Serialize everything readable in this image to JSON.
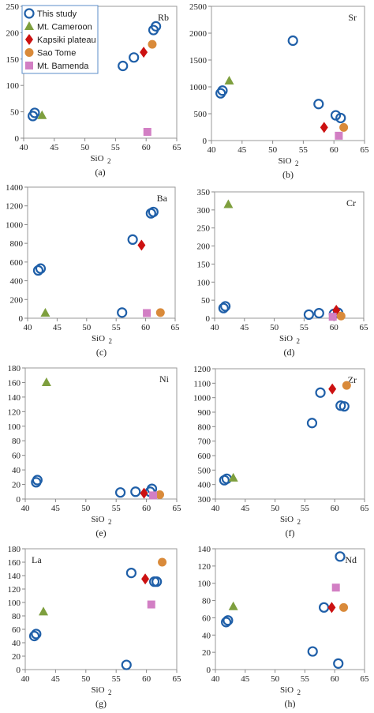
{
  "figure": {
    "x_axis_label": "SiO",
    "x_axis_subscript": "2"
  },
  "legend": {
    "items": [
      {
        "label": "This study",
        "marker": "open-circle",
        "color": "#1f5fa8"
      },
      {
        "label": "Mt. Cameroon",
        "marker": "triangle",
        "color": "#7e9f3e"
      },
      {
        "label": "Kapsiki plateau",
        "marker": "diamond",
        "color": "#cc1111"
      },
      {
        "label": "Sao Tome",
        "marker": "filled-circle",
        "color": "#d98a3a"
      },
      {
        "label": "Mt. Bamenda",
        "marker": "square",
        "color": "#d27fc4"
      }
    ]
  },
  "chart_data": [
    {
      "type": "scatter",
      "panel_label": "(a)",
      "element_label": "Rb",
      "xlim": [
        40,
        65
      ],
      "ylim": [
        0,
        250
      ],
      "xticks": [
        40,
        45,
        50,
        55,
        60,
        65
      ],
      "yticks": [
        0,
        50,
        100,
        150,
        200,
        250
      ],
      "series": [
        {
          "name": "This study",
          "points": [
            [
              41.5,
              42
            ],
            [
              41.8,
              48
            ],
            [
              56.2,
              137
            ],
            [
              58,
              153
            ],
            [
              61.2,
              205
            ],
            [
              61.6,
              212
            ]
          ]
        },
        {
          "name": "Mt. Cameroon",
          "points": [
            [
              43,
              43
            ]
          ]
        },
        {
          "name": "Kapsiki plateau",
          "points": [
            [
              59.6,
              163
            ]
          ]
        },
        {
          "name": "Sao Tome",
          "points": [
            [
              61,
              178
            ]
          ]
        },
        {
          "name": "Mt. Bamenda",
          "points": [
            [
              60.2,
              12
            ]
          ]
        }
      ]
    },
    {
      "type": "scatter",
      "panel_label": "(b)",
      "element_label": "Sr",
      "xlim": [
        40,
        65
      ],
      "ylim": [
        0,
        2500
      ],
      "xticks": [
        40,
        45,
        50,
        55,
        60,
        65
      ],
      "yticks": [
        0,
        500,
        1000,
        1500,
        2000,
        2500
      ],
      "series": [
        {
          "name": "This study",
          "points": [
            [
              41.5,
              880
            ],
            [
              41.8,
              930
            ],
            [
              53.3,
              1860
            ],
            [
              57.5,
              680
            ],
            [
              60.3,
              470
            ],
            [
              61.1,
              420
            ]
          ]
        },
        {
          "name": "Mt. Cameroon",
          "points": [
            [
              42.9,
              1110
            ]
          ]
        },
        {
          "name": "Kapsiki plateau",
          "points": [
            [
              58.4,
              245
            ]
          ]
        },
        {
          "name": "Sao Tome",
          "points": [
            [
              61.6,
              245
            ]
          ]
        },
        {
          "name": "Mt. Bamenda",
          "points": [
            [
              60.8,
              90
            ]
          ]
        }
      ]
    },
    {
      "type": "scatter",
      "panel_label": "(c)",
      "element_label": "Ba",
      "xlim": [
        40,
        65
      ],
      "ylim": [
        0,
        1400
      ],
      "xticks": [
        40,
        45,
        50,
        55,
        60,
        65
      ],
      "yticks": [
        0,
        200,
        400,
        600,
        800,
        1000,
        1200,
        1400
      ],
      "series": [
        {
          "name": "This study",
          "points": [
            [
              41.8,
              510
            ],
            [
              42.2,
              530
            ],
            [
              56,
              60
            ],
            [
              57.8,
              840
            ],
            [
              60.9,
              1120
            ],
            [
              61.3,
              1135
            ]
          ]
        },
        {
          "name": "Mt. Cameroon",
          "points": [
            [
              43,
              55
            ]
          ]
        },
        {
          "name": "Kapsiki plateau",
          "points": [
            [
              59.3,
              780
            ]
          ]
        },
        {
          "name": "Sao Tome",
          "points": [
            [
              62.5,
              60
            ]
          ]
        },
        {
          "name": "Mt. Bamenda",
          "points": [
            [
              60.2,
              55
            ]
          ]
        }
      ]
    },
    {
      "type": "scatter",
      "panel_label": "(d)",
      "element_label": "Cr",
      "xlim": [
        40,
        65
      ],
      "ylim": [
        0,
        350
      ],
      "xticks": [
        40,
        45,
        50,
        55,
        60,
        65
      ],
      "yticks": [
        0,
        50,
        100,
        150,
        200,
        250,
        300,
        350
      ],
      "series": [
        {
          "name": "This study",
          "points": [
            [
              41.5,
              28
            ],
            [
              41.8,
              33
            ],
            [
              55.8,
              10
            ],
            [
              57.5,
              14
            ],
            [
              60,
              12
            ],
            [
              60.7,
              15
            ]
          ]
        },
        {
          "name": "Mt. Cameroon",
          "points": [
            [
              42.3,
              315
            ]
          ]
        },
        {
          "name": "Kapsiki plateau",
          "points": [
            [
              60.4,
              22
            ]
          ]
        },
        {
          "name": "Sao Tome",
          "points": [
            [
              61.2,
              6
            ]
          ]
        },
        {
          "name": "Mt. Bamenda",
          "points": [
            [
              59.8,
              4
            ]
          ]
        }
      ]
    },
    {
      "type": "scatter",
      "panel_label": "(e)",
      "element_label": "Ni",
      "xlim": [
        40,
        65
      ],
      "ylim": [
        0,
        180
      ],
      "xticks": [
        40,
        45,
        50,
        55,
        60,
        65
      ],
      "yticks": [
        0,
        20,
        40,
        60,
        80,
        100,
        120,
        140,
        160,
        180
      ],
      "series": [
        {
          "name": "This study",
          "points": [
            [
              41.8,
              23
            ],
            [
              42,
              26
            ],
            [
              55.7,
              9
            ],
            [
              58.2,
              10
            ],
            [
              60.6,
              10
            ],
            [
              60.9,
              14
            ]
          ]
        },
        {
          "name": "Mt. Cameroon",
          "points": [
            [
              43.5,
              160
            ]
          ]
        },
        {
          "name": "Kapsiki plateau",
          "points": [
            [
              59.6,
              8
            ]
          ]
        },
        {
          "name": "Sao Tome",
          "points": [
            [
              62.2,
              6
            ]
          ]
        },
        {
          "name": "Mt. Bamenda",
          "points": [
            [
              61.1,
              5
            ]
          ]
        }
      ]
    },
    {
      "type": "scatter",
      "panel_label": "(f)",
      "element_label": "Zr",
      "xlim": [
        40,
        65
      ],
      "ylim": [
        300,
        1200
      ],
      "xticks": [
        40,
        45,
        50,
        55,
        60,
        65
      ],
      "yticks": [
        300,
        400,
        500,
        600,
        700,
        800,
        900,
        1000,
        1100,
        1200
      ],
      "series": [
        {
          "name": "This study",
          "points": [
            [
              41.5,
              430
            ],
            [
              41.9,
              440
            ],
            [
              56.2,
              825
            ],
            [
              57.6,
              1035
            ],
            [
              61,
              945
            ],
            [
              61.6,
              940
            ]
          ]
        },
        {
          "name": "Mt. Cameroon",
          "points": [
            [
              43,
              445
            ]
          ]
        },
        {
          "name": "Kapsiki plateau",
          "points": [
            [
              59.6,
              1060
            ]
          ]
        },
        {
          "name": "Sao Tome",
          "points": [
            [
              62,
              1085
            ]
          ]
        },
        {
          "name": "Mt. Bamenda",
          "points": []
        }
      ]
    },
    {
      "type": "scatter",
      "panel_label": "(g)",
      "element_label": "La",
      "xlim": [
        40,
        65
      ],
      "ylim": [
        0,
        180
      ],
      "xticks": [
        40,
        45,
        50,
        55,
        60,
        65
      ],
      "yticks": [
        0,
        20,
        40,
        60,
        80,
        100,
        120,
        140,
        160,
        180
      ],
      "series": [
        {
          "name": "This study",
          "points": [
            [
              41.5,
              50
            ],
            [
              41.8,
              53
            ],
            [
              56.7,
              7
            ],
            [
              57.5,
              144
            ],
            [
              61.3,
              131
            ],
            [
              61.7,
              131
            ]
          ]
        },
        {
          "name": "Mt. Cameroon",
          "points": [
            [
              43,
              86
            ]
          ]
        },
        {
          "name": "Kapsiki plateau",
          "points": [
            [
              59.8,
              135
            ]
          ]
        },
        {
          "name": "Sao Tome",
          "points": [
            [
              62.6,
              160
            ]
          ]
        },
        {
          "name": "Mt. Bamenda",
          "points": [
            [
              60.8,
              97
            ]
          ]
        }
      ]
    },
    {
      "type": "scatter",
      "panel_label": "(h)",
      "element_label": "Nd",
      "xlim": [
        40,
        65
      ],
      "ylim": [
        0,
        140
      ],
      "xticks": [
        40,
        45,
        50,
        55,
        60,
        65
      ],
      "yticks": [
        0,
        20,
        40,
        60,
        80,
        100,
        120,
        140
      ],
      "series": [
        {
          "name": "This study",
          "points": [
            [
              41.8,
              55
            ],
            [
              42.1,
              57
            ],
            [
              56.3,
              21
            ],
            [
              58.2,
              72
            ],
            [
              60.6,
              7
            ],
            [
              60.9,
              131
            ]
          ]
        },
        {
          "name": "Mt. Cameroon",
          "points": [
            [
              43,
              73
            ]
          ]
        },
        {
          "name": "Kapsiki plateau",
          "points": [
            [
              59.5,
              72
            ]
          ]
        },
        {
          "name": "Sao Tome",
          "points": [
            [
              61.5,
              72
            ]
          ]
        },
        {
          "name": "Mt. Bamenda",
          "points": [
            [
              60.2,
              95
            ]
          ]
        }
      ]
    }
  ]
}
